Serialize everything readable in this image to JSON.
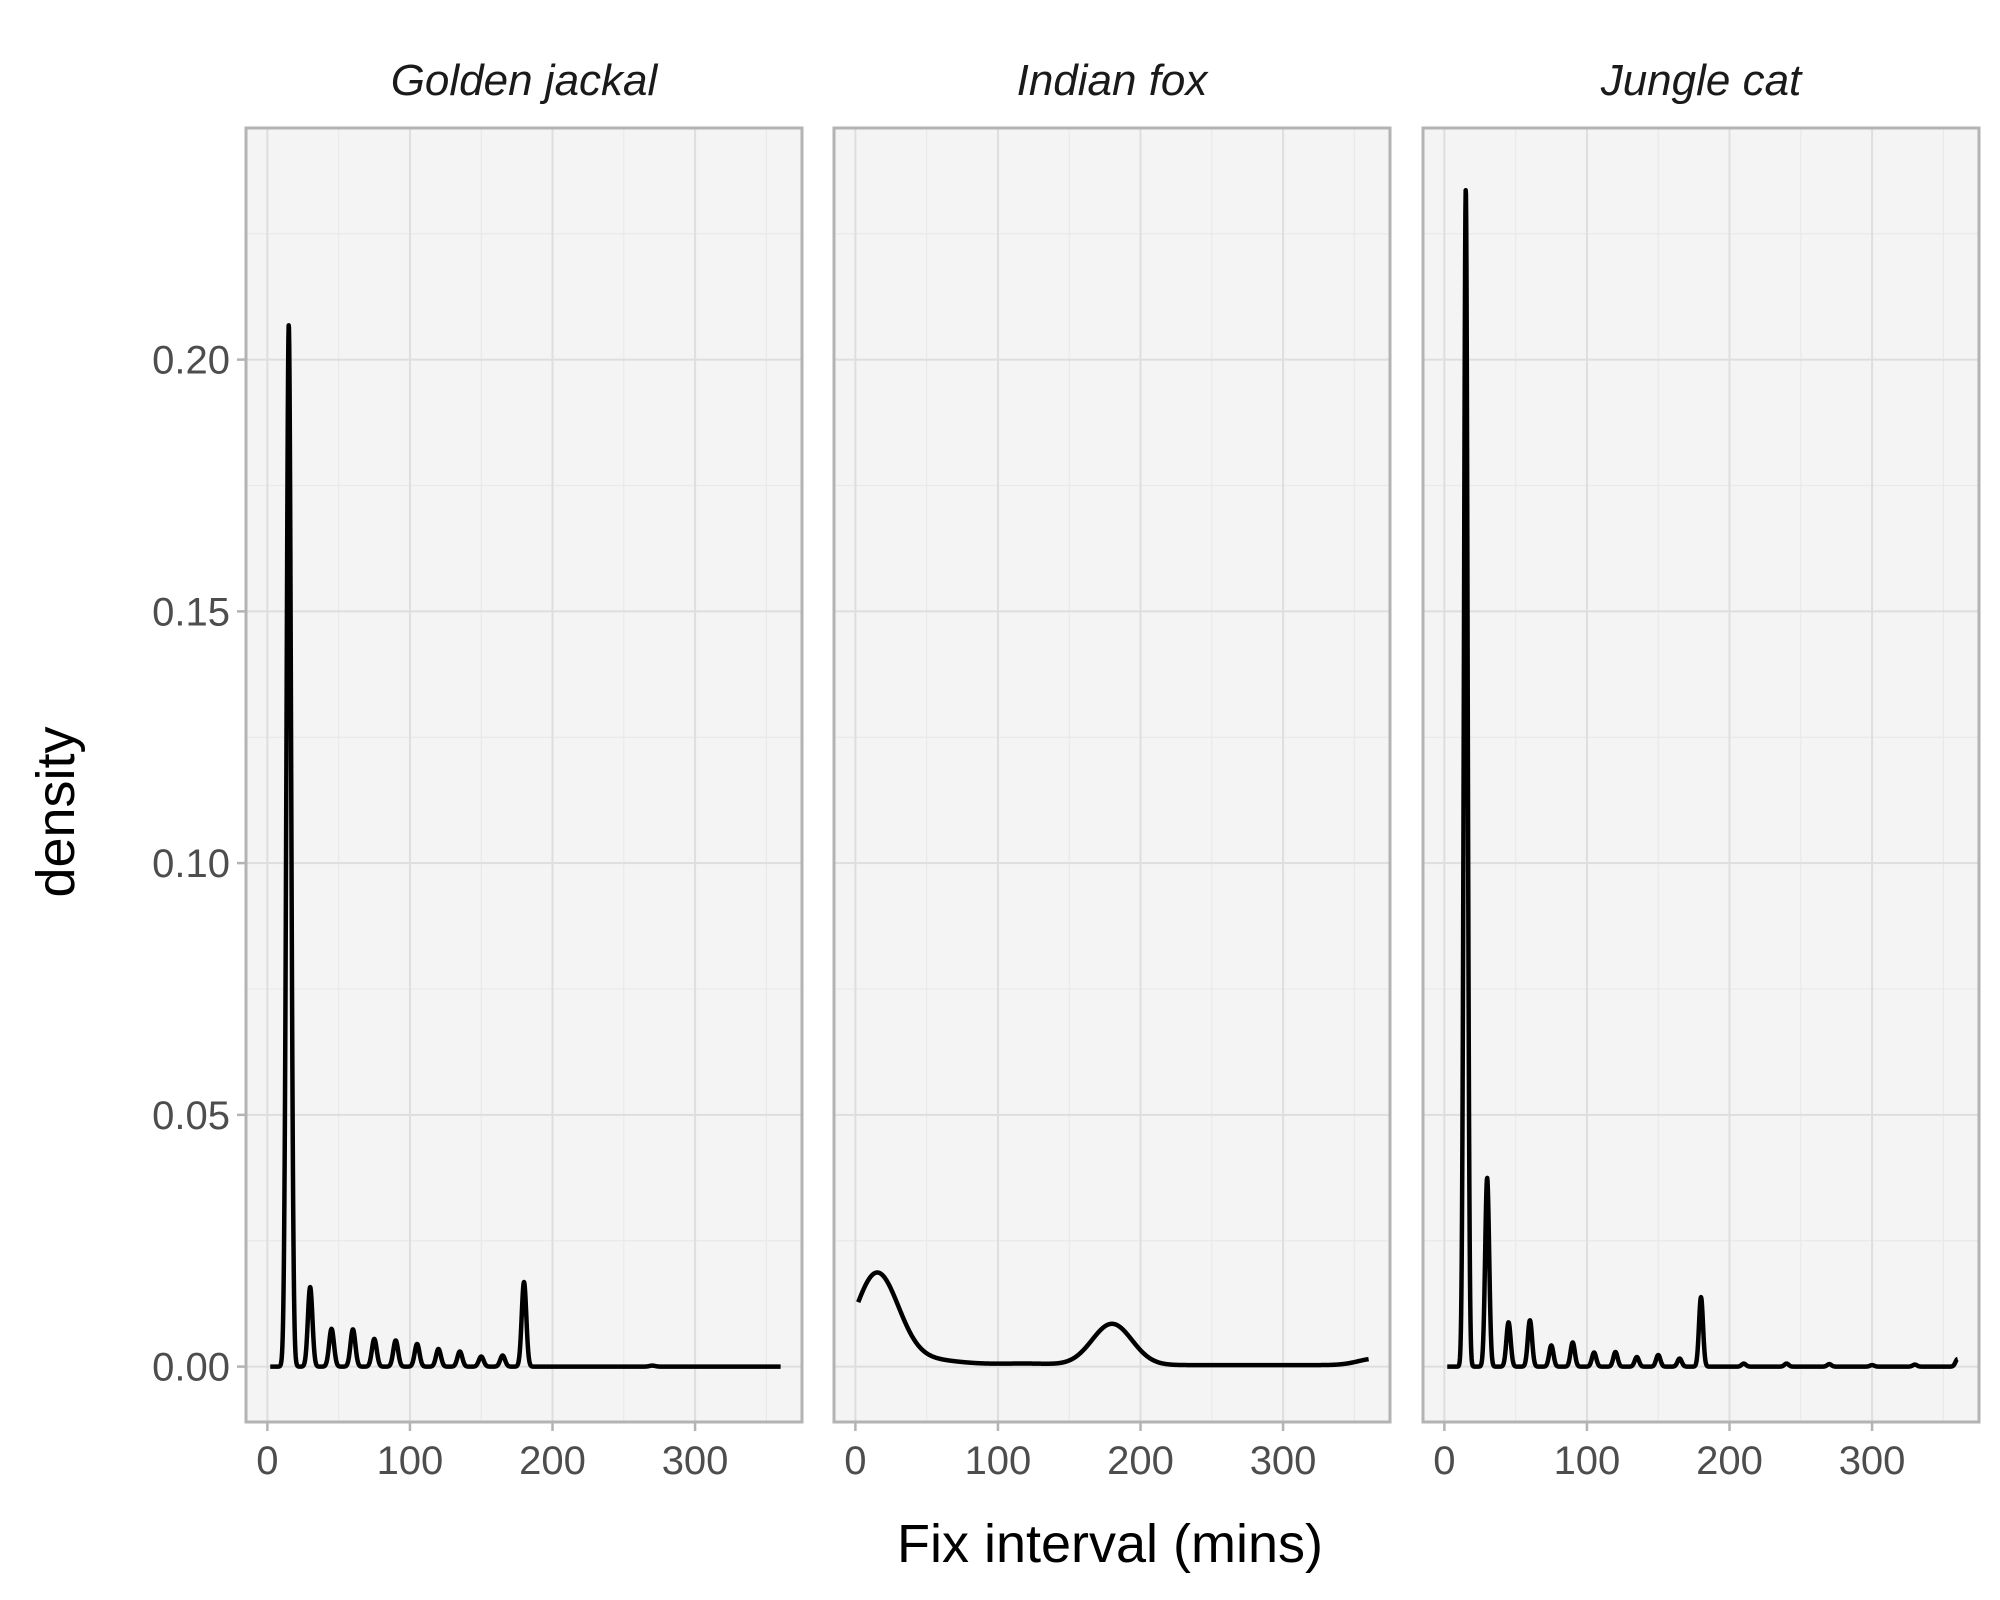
{
  "chart_data": {
    "type": "line",
    "xlabel": "Fix interval (mins)",
    "ylabel": "density",
    "xlim": [
      -15,
      375
    ],
    "ylim": [
      -0.011,
      0.246
    ],
    "x_ticks": [
      0,
      100,
      200,
      300
    ],
    "x_tick_labels": [
      "0",
      "100",
      "200",
      "300"
    ],
    "y_ticks": [
      0.0,
      0.05,
      0.1,
      0.15,
      0.2
    ],
    "y_tick_labels": [
      "0.00",
      "0.05",
      "0.10",
      "0.15",
      "0.20"
    ],
    "grid": true,
    "legend": "none",
    "line_color": "#000000",
    "panel_background": "#f4f4f4",
    "panels": [
      {
        "label": "Golden jackal",
        "x_range": [
          2,
          360
        ],
        "baseline": 0,
        "peaks": [
          {
            "x": 15,
            "height": 0.207,
            "width": 1.6
          },
          {
            "x": 30,
            "height": 0.0158,
            "width": 1.6
          },
          {
            "x": 45,
            "height": 0.0075,
            "width": 1.7
          },
          {
            "x": 60,
            "height": 0.0074,
            "width": 1.7
          },
          {
            "x": 75,
            "height": 0.0055,
            "width": 1.7
          },
          {
            "x": 90,
            "height": 0.0052,
            "width": 1.7
          },
          {
            "x": 105,
            "height": 0.0045,
            "width": 1.7
          },
          {
            "x": 120,
            "height": 0.0035,
            "width": 1.7
          },
          {
            "x": 135,
            "height": 0.003,
            "width": 1.7
          },
          {
            "x": 150,
            "height": 0.002,
            "width": 1.7
          },
          {
            "x": 165,
            "height": 0.0022,
            "width": 1.7
          },
          {
            "x": 180,
            "height": 0.0168,
            "width": 1.6
          },
          {
            "x": 270,
            "height": 0.0002,
            "width": 2
          }
        ]
      },
      {
        "label": "Indian fox",
        "x_range": [
          2,
          360
        ],
        "baseline": 0.0003,
        "peaks": [
          {
            "x": 15,
            "height": 0.0178,
            "width": 15
          },
          {
            "x": 45,
            "height": 0.0012,
            "width": 25
          },
          {
            "x": 120,
            "height": 0.0003,
            "width": 20
          },
          {
            "x": 180,
            "height": 0.0082,
            "width": 14
          },
          {
            "x": 365,
            "height": 0.0013,
            "width": 12
          }
        ]
      },
      {
        "label": "Jungle cat",
        "x_range": [
          2,
          360
        ],
        "baseline": 0,
        "peaks": [
          {
            "x": 15,
            "height": 0.234,
            "width": 1.3
          },
          {
            "x": 30,
            "height": 0.0375,
            "width": 1.4
          },
          {
            "x": 45,
            "height": 0.0088,
            "width": 1.5
          },
          {
            "x": 60,
            "height": 0.0092,
            "width": 1.5
          },
          {
            "x": 75,
            "height": 0.0042,
            "width": 1.5
          },
          {
            "x": 90,
            "height": 0.0048,
            "width": 1.5
          },
          {
            "x": 105,
            "height": 0.0028,
            "width": 1.5
          },
          {
            "x": 120,
            "height": 0.0029,
            "width": 1.5
          },
          {
            "x": 135,
            "height": 0.0019,
            "width": 1.5
          },
          {
            "x": 150,
            "height": 0.0023,
            "width": 1.5
          },
          {
            "x": 165,
            "height": 0.0016,
            "width": 1.5
          },
          {
            "x": 180,
            "height": 0.0138,
            "width": 1.4
          },
          {
            "x": 210,
            "height": 0.0006,
            "width": 1.5
          },
          {
            "x": 240,
            "height": 0.0006,
            "width": 1.5
          },
          {
            "x": 270,
            "height": 0.0005,
            "width": 1.5
          },
          {
            "x": 300,
            "height": 0.0003,
            "width": 1.5
          },
          {
            "x": 330,
            "height": 0.0004,
            "width": 1.5
          },
          {
            "x": 360,
            "height": 0.0015,
            "width": 1.5
          }
        ]
      }
    ]
  }
}
